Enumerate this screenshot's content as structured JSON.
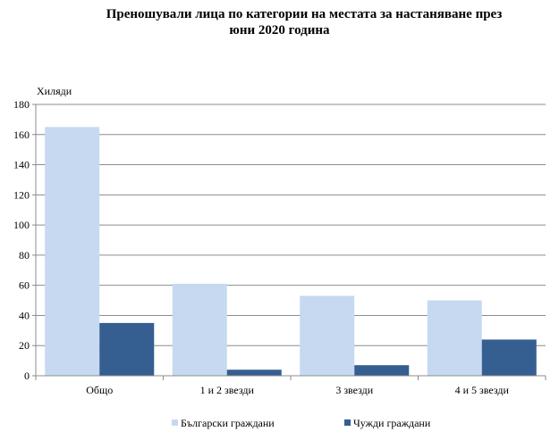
{
  "title": {
    "line1": "Преношували лица по категории на местата за настаняване през",
    "line2": "юни 2020 година"
  },
  "chart_data": {
    "type": "bar",
    "unit_label": "Хиляди",
    "categories": [
      "Общо",
      "1 и 2 звезди",
      "3 звезди",
      "4 и 5 звезди"
    ],
    "series": [
      {
        "name": "Български граждани",
        "color": "#c6d9f1",
        "values": [
          165,
          61,
          53,
          50
        ]
      },
      {
        "name": "Чужди граждани",
        "color": "#355e91",
        "values": [
          35,
          4,
          7,
          24
        ]
      }
    ],
    "ylim": [
      0,
      180
    ],
    "yticks": [
      0,
      20,
      40,
      60,
      80,
      100,
      120,
      140,
      160,
      180
    ],
    "grid": true,
    "legend_position": "bottom"
  }
}
